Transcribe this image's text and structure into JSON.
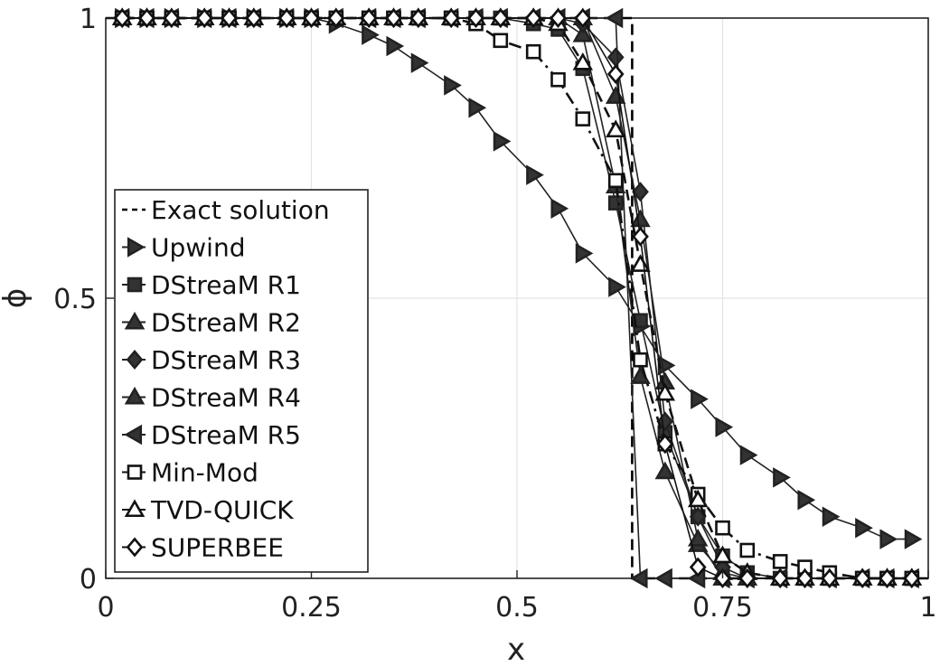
{
  "chart_data": {
    "type": "line",
    "xlabel": "x",
    "ylabel": "ϕ",
    "xlim": [
      0,
      1
    ],
    "ylim": [
      0,
      1
    ],
    "xticks": [
      0,
      0.25,
      0.5,
      0.75,
      1
    ],
    "xtick_labels": [
      "0",
      "0.25",
      "0.5",
      "0.75",
      "1"
    ],
    "yticks": [
      0,
      0.5,
      1
    ],
    "ytick_labels": [
      "0",
      "0.5",
      "1"
    ],
    "grid": true,
    "legend_position": "center-left",
    "series": [
      {
        "name": "Exact solution",
        "style": "dashed",
        "marker": "none",
        "fill": "none",
        "color": "#000000",
        "x": [
          0,
          0.64,
          0.64,
          1
        ],
        "y": [
          1,
          1,
          0,
          0
        ]
      },
      {
        "name": "Upwind",
        "style": "solid",
        "marker": "triangle-right",
        "fill": "#333333",
        "color": "#222222",
        "x": [
          0.02,
          0.05,
          0.08,
          0.12,
          0.15,
          0.18,
          0.22,
          0.25,
          0.28,
          0.32,
          0.35,
          0.38,
          0.42,
          0.45,
          0.48,
          0.52,
          0.55,
          0.58,
          0.62,
          0.65,
          0.68,
          0.72,
          0.75,
          0.78,
          0.82,
          0.85,
          0.88,
          0.92,
          0.95,
          0.98
        ],
        "y": [
          1,
          1,
          1,
          1,
          1,
          1,
          1,
          1,
          0.99,
          0.97,
          0.95,
          0.92,
          0.88,
          0.84,
          0.78,
          0.72,
          0.66,
          0.58,
          0.52,
          0.45,
          0.38,
          0.32,
          0.27,
          0.22,
          0.18,
          0.14,
          0.11,
          0.09,
          0.07,
          0.07
        ]
      },
      {
        "name": "DStreaM R1",
        "style": "solid",
        "marker": "square",
        "fill": "#333333",
        "color": "#222222",
        "x": [
          0.02,
          0.05,
          0.08,
          0.12,
          0.15,
          0.18,
          0.22,
          0.25,
          0.28,
          0.32,
          0.35,
          0.38,
          0.42,
          0.45,
          0.48,
          0.52,
          0.55,
          0.58,
          0.62,
          0.65,
          0.68,
          0.72,
          0.75,
          0.78,
          0.82,
          0.85,
          0.88,
          0.92,
          0.95,
          0.98
        ],
        "y": [
          1,
          1,
          1,
          1,
          1,
          1,
          1,
          1,
          1,
          1,
          1,
          1,
          1,
          1,
          1,
          0.99,
          0.98,
          0.91,
          0.67,
          0.46,
          0.26,
          0.11,
          0.04,
          0.01,
          0,
          0,
          0,
          0,
          0,
          0
        ]
      },
      {
        "name": "DStreaM R2",
        "style": "solid",
        "marker": "triangle-up",
        "fill": "#333333",
        "color": "#222222",
        "x": [
          0.02,
          0.05,
          0.08,
          0.12,
          0.15,
          0.18,
          0.22,
          0.25,
          0.28,
          0.32,
          0.35,
          0.38,
          0.42,
          0.45,
          0.48,
          0.52,
          0.55,
          0.58,
          0.62,
          0.65,
          0.68,
          0.72,
          0.75,
          0.78,
          0.82,
          0.85,
          0.88,
          0.92,
          0.95,
          0.98
        ],
        "y": [
          1,
          1,
          1,
          1,
          1,
          1,
          1,
          1,
          1,
          1,
          1,
          1,
          1,
          1,
          1,
          1,
          1,
          0.97,
          0.7,
          0.36,
          0.19,
          0.06,
          0.01,
          0,
          0,
          0,
          0,
          0,
          0,
          0
        ]
      },
      {
        "name": "DStreaM R3",
        "style": "solid",
        "marker": "diamond",
        "fill": "#333333",
        "color": "#222222",
        "x": [
          0.02,
          0.05,
          0.08,
          0.12,
          0.15,
          0.18,
          0.22,
          0.25,
          0.28,
          0.32,
          0.35,
          0.38,
          0.42,
          0.45,
          0.48,
          0.52,
          0.55,
          0.58,
          0.62,
          0.65,
          0.68,
          0.72,
          0.75,
          0.78,
          0.82,
          0.85,
          0.88,
          0.92,
          0.95,
          0.98
        ],
        "y": [
          1,
          1,
          1,
          1,
          1,
          1,
          1,
          1,
          1,
          1,
          1,
          1,
          1,
          1,
          1,
          1,
          1,
          0.99,
          0.93,
          0.69,
          0.28,
          0.11,
          0.02,
          0,
          0,
          0,
          0,
          0,
          0,
          0
        ]
      },
      {
        "name": "DStreaM R4",
        "style": "solid",
        "marker": "triangle-up",
        "fill": "#333333",
        "color": "#222222",
        "x": [
          0.02,
          0.05,
          0.08,
          0.12,
          0.15,
          0.18,
          0.22,
          0.25,
          0.28,
          0.32,
          0.35,
          0.38,
          0.42,
          0.45,
          0.48,
          0.52,
          0.55,
          0.58,
          0.62,
          0.65,
          0.68,
          0.72,
          0.75,
          0.78,
          0.82,
          0.85,
          0.88,
          0.92,
          0.95,
          0.98
        ],
        "y": [
          1,
          1,
          1,
          1,
          1,
          1,
          1,
          1,
          1,
          1,
          1,
          1,
          1,
          1,
          1,
          1,
          1,
          1,
          0.86,
          0.64,
          0.35,
          0.07,
          0,
          0,
          0,
          0,
          0,
          0,
          0,
          0
        ]
      },
      {
        "name": "DStreaM R5",
        "style": "solid",
        "marker": "triangle-left",
        "fill": "#333333",
        "color": "#222222",
        "x": [
          0.02,
          0.05,
          0.08,
          0.12,
          0.15,
          0.18,
          0.22,
          0.25,
          0.28,
          0.32,
          0.35,
          0.38,
          0.42,
          0.45,
          0.48,
          0.52,
          0.55,
          0.58,
          0.62,
          0.65,
          0.68,
          0.72,
          0.75,
          0.78,
          0.82,
          0.85,
          0.88,
          0.92,
          0.95,
          0.98
        ],
        "y": [
          1,
          1,
          1,
          1,
          1,
          1,
          1,
          1,
          1,
          1,
          1,
          1,
          1,
          1,
          1,
          1,
          1,
          1,
          1,
          0,
          0,
          0,
          0,
          0,
          0,
          0,
          0,
          0,
          0,
          0
        ]
      },
      {
        "name": "Min-Mod",
        "style": "dashdot",
        "marker": "square",
        "fill": "#ffffff",
        "color": "#111111",
        "x": [
          0.02,
          0.05,
          0.08,
          0.12,
          0.15,
          0.18,
          0.22,
          0.25,
          0.28,
          0.32,
          0.35,
          0.38,
          0.42,
          0.45,
          0.48,
          0.52,
          0.55,
          0.58,
          0.62,
          0.65,
          0.68,
          0.72,
          0.75,
          0.78,
          0.82,
          0.85,
          0.88,
          0.92,
          0.95,
          0.98
        ],
        "y": [
          1,
          1,
          1,
          1,
          1,
          1,
          1,
          1,
          1,
          1,
          1,
          1,
          1,
          0.99,
          0.96,
          0.94,
          0.89,
          0.82,
          0.71,
          0.39,
          0.24,
          0.15,
          0.09,
          0.05,
          0.03,
          0.02,
          0.01,
          0,
          0,
          0
        ]
      },
      {
        "name": "TVD-QUICK",
        "style": "dashed",
        "marker": "triangle-up",
        "fill": "#ffffff",
        "color": "#111111",
        "x": [
          0.02,
          0.05,
          0.08,
          0.12,
          0.15,
          0.18,
          0.22,
          0.25,
          0.28,
          0.32,
          0.35,
          0.38,
          0.42,
          0.45,
          0.48,
          0.52,
          0.55,
          0.58,
          0.62,
          0.65,
          0.68,
          0.72,
          0.75,
          0.78,
          0.82,
          0.85,
          0.88,
          0.92,
          0.95,
          0.98
        ],
        "y": [
          1,
          1,
          1,
          1,
          1,
          1,
          1,
          1,
          1,
          1,
          1,
          1,
          1,
          1,
          1,
          1,
          0.99,
          0.92,
          0.8,
          0.56,
          0.33,
          0.14,
          0.04,
          0.01,
          0,
          0,
          0,
          0,
          0,
          0
        ]
      },
      {
        "name": "SUPERBEE",
        "style": "solid",
        "marker": "diamond",
        "fill": "#ffffff",
        "color": "#111111",
        "x": [
          0.02,
          0.05,
          0.08,
          0.12,
          0.15,
          0.18,
          0.22,
          0.25,
          0.28,
          0.32,
          0.35,
          0.38,
          0.42,
          0.45,
          0.48,
          0.52,
          0.55,
          0.58,
          0.62,
          0.65,
          0.68,
          0.72,
          0.75,
          0.78,
          0.82,
          0.85,
          0.88,
          0.92,
          0.95,
          0.98
        ],
        "y": [
          1,
          1,
          1,
          1,
          1,
          1,
          1,
          1,
          1,
          1,
          1,
          1,
          1,
          1,
          1,
          1,
          1,
          1,
          0.9,
          0.61,
          0.24,
          0.02,
          0,
          0,
          0,
          0,
          0,
          0,
          0,
          0
        ]
      }
    ]
  }
}
